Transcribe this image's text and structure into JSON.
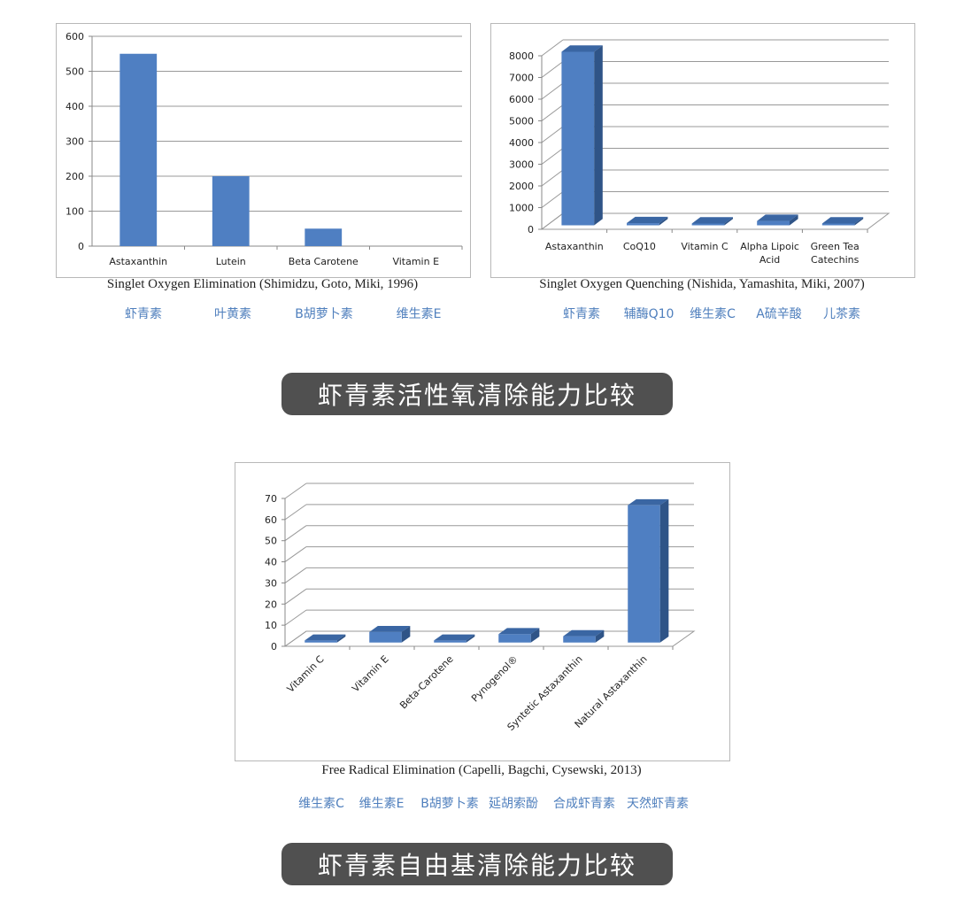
{
  "chart_data": [
    {
      "type": "bar",
      "title": "Singlet Oxygen Elimination (Shimidzu, Goto, Miki, 1996)",
      "categories": [
        "Astaxanthin",
        "Lutein",
        "Beta Carotene",
        "Vitamin E"
      ],
      "values": [
        550,
        200,
        50,
        0
      ],
      "ylim": [
        0,
        600
      ],
      "yticks": [
        0,
        100,
        200,
        300,
        400,
        500,
        600
      ],
      "grid": true,
      "three_d": false,
      "category_labels_cn": [
        "虾青素",
        "叶黄素",
        "B胡萝卜素",
        "维生素E"
      ]
    },
    {
      "type": "bar",
      "title": "Singlet Oxygen Quenching (Nishida, Yamashita, Miki, 2007)",
      "categories": [
        "Astaxanthin",
        "CoQ10",
        "Vitamin C",
        "Alpha Lipoic Acid",
        "Green Tea Catechins"
      ],
      "values": [
        8000,
        100,
        80,
        200,
        60
      ],
      "ylim": [
        0,
        8000
      ],
      "yticks": [
        0,
        1000,
        2000,
        3000,
        4000,
        5000,
        6000,
        7000,
        8000
      ],
      "grid": true,
      "three_d": true,
      "category_labels_cn": [
        "虾青素",
        "辅酶Q10",
        "维生素C",
        "A硫辛酸",
        "儿茶素"
      ]
    },
    {
      "type": "bar",
      "title": "Free Radical Elimination (Capelli, Bagchi, Cysewski, 2013)",
      "categories": [
        "Vitamin C",
        "Vitamin E",
        "Beta-Carotene",
        "Pynogenol®",
        "Syntetic Astaxanthin",
        "Natural Astaxanthin"
      ],
      "values": [
        1,
        5,
        1,
        4,
        3,
        65
      ],
      "ylim": [
        0,
        70
      ],
      "yticks": [
        0,
        10,
        20,
        30,
        40,
        50,
        60,
        70
      ],
      "grid": true,
      "three_d": true,
      "rotated_labels": true,
      "category_labels_cn": [
        "维生素C",
        "维生素E",
        "B胡萝卜素",
        "延胡索酚",
        "合成虾青素",
        "天然虾青素"
      ]
    }
  ],
  "banners": [
    "虾青素活性氧清除能力比较",
    "虾青素自由基清除能力比较"
  ],
  "colors": {
    "bar": "#4f7fc2",
    "bar_side": "#2f5487",
    "bar_top": "#3a66a3",
    "cn_label": "#4f7fbd",
    "banner_bg": "#505050"
  }
}
